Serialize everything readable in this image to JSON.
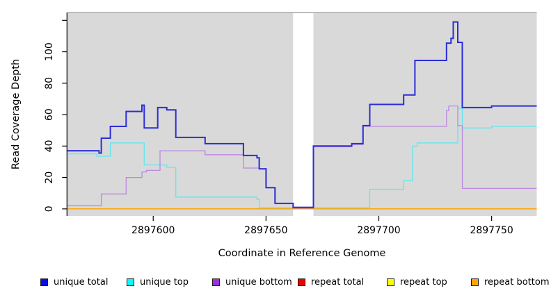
{
  "chart_data": {
    "type": "line",
    "step": "after",
    "title": "",
    "xlabel": "Coordinate in Reference Genome",
    "ylabel": "Read Coverage Depth",
    "xlim": [
      2897562,
      2897770
    ],
    "ylim": [
      -4.5,
      125
    ],
    "x_ticks": [
      2897600,
      2897650,
      2897700,
      2897750
    ],
    "y_ticks_labeled": [
      0,
      20,
      40,
      60,
      80,
      100
    ],
    "y_ticks_unlabeled": [
      120
    ],
    "grid": false,
    "legend_position": "bottom",
    "panel_bg": "#d9d9d9",
    "gap_region": {
      "x_start": 2897662,
      "x_end": 2897671,
      "color": "#ffffff"
    },
    "series": [
      {
        "name": "unique total",
        "legend_color": "#0a0aee",
        "line_color": "#2c2cd8",
        "line_width": 2,
        "points": [
          [
            2897562,
            37
          ],
          [
            2897576,
            35.5
          ],
          [
            2897577,
            45
          ],
          [
            2897581,
            52.5
          ],
          [
            2897588,
            62
          ],
          [
            2897595,
            66
          ],
          [
            2897596,
            51.5
          ],
          [
            2897602,
            64.5
          ],
          [
            2897606,
            63
          ],
          [
            2897610,
            45.5
          ],
          [
            2897623,
            41.5
          ],
          [
            2897640,
            34
          ],
          [
            2897646,
            32.5
          ],
          [
            2897647,
            25.5
          ],
          [
            2897650,
            13.5
          ],
          [
            2897654,
            3.5
          ],
          [
            2897662,
            1
          ],
          [
            2897671,
            40
          ],
          [
            2897688,
            41.5
          ],
          [
            2897693,
            53
          ],
          [
            2897696,
            66.5
          ],
          [
            2897711,
            72.5
          ],
          [
            2897716,
            94.5
          ],
          [
            2897730,
            105.5
          ],
          [
            2897732,
            108.5
          ],
          [
            2897733,
            119
          ],
          [
            2897735,
            106
          ],
          [
            2897737,
            64.5
          ],
          [
            2897750,
            65.5
          ],
          [
            2897770,
            65.5
          ]
        ]
      },
      {
        "name": "unique top",
        "legend_color": "#00ffff",
        "line_color": "#5fe8ee",
        "line_width": 1.3,
        "points": [
          [
            2897562,
            35
          ],
          [
            2897575,
            33.5
          ],
          [
            2897581,
            42
          ],
          [
            2897596,
            28
          ],
          [
            2897606,
            26.5
          ],
          [
            2897610,
            7.5
          ],
          [
            2897646,
            6
          ],
          [
            2897647,
            0.8
          ],
          [
            2897696,
            12.5
          ],
          [
            2897711,
            18
          ],
          [
            2897715,
            40
          ],
          [
            2897717,
            42
          ],
          [
            2897735,
            64
          ],
          [
            2897737,
            51.5
          ],
          [
            2897750,
            52.5
          ],
          [
            2897770,
            52.5
          ]
        ]
      },
      {
        "name": "unique bottom",
        "legend_color": "#9b30dc",
        "line_color": "#bc88e0",
        "line_width": 1.3,
        "points": [
          [
            2897562,
            2
          ],
          [
            2897577,
            9.5
          ],
          [
            2897588,
            20
          ],
          [
            2897595,
            23.5
          ],
          [
            2897597,
            24.5
          ],
          [
            2897603,
            37
          ],
          [
            2897623,
            34.5
          ],
          [
            2897640,
            26
          ],
          [
            2897647,
            25.5
          ],
          [
            2897650,
            13.5
          ],
          [
            2897654,
            3.5
          ],
          [
            2897662,
            0.5
          ],
          [
            2897671,
            39.5
          ],
          [
            2897688,
            41
          ],
          [
            2897693,
            52.5
          ],
          [
            2897730,
            62.5
          ],
          [
            2897731,
            65.5
          ],
          [
            2897735,
            53
          ],
          [
            2897737,
            13
          ],
          [
            2897770,
            13
          ]
        ]
      },
      {
        "name": "repeat total",
        "legend_color": "#ee0000",
        "line_color": "#ee0000",
        "line_width": 1.3,
        "points": [
          [
            2897562,
            0
          ],
          [
            2897770,
            0
          ]
        ]
      },
      {
        "name": "repeat top",
        "legend_color": "#ffff00",
        "line_color": "#ffff00",
        "line_width": 1.3,
        "points": [
          [
            2897562,
            0
          ],
          [
            2897770,
            0
          ]
        ]
      },
      {
        "name": "repeat bottom",
        "legend_color": "#ffa500",
        "line_color": "#ffa500",
        "line_width": 1.5,
        "points": [
          [
            2897562,
            0
          ],
          [
            2897770,
            0
          ]
        ]
      }
    ]
  },
  "legend": {
    "items": [
      {
        "label": "unique total",
        "color": "#0a0aee"
      },
      {
        "label": "unique top",
        "color": "#00ffff"
      },
      {
        "label": "unique bottom",
        "color": "#9b30dc"
      },
      {
        "label": "repeat total",
        "color": "#ee0000"
      },
      {
        "label": "repeat top",
        "color": "#ffff00"
      },
      {
        "label": "repeat bottom",
        "color": "#ffa500"
      }
    ]
  }
}
